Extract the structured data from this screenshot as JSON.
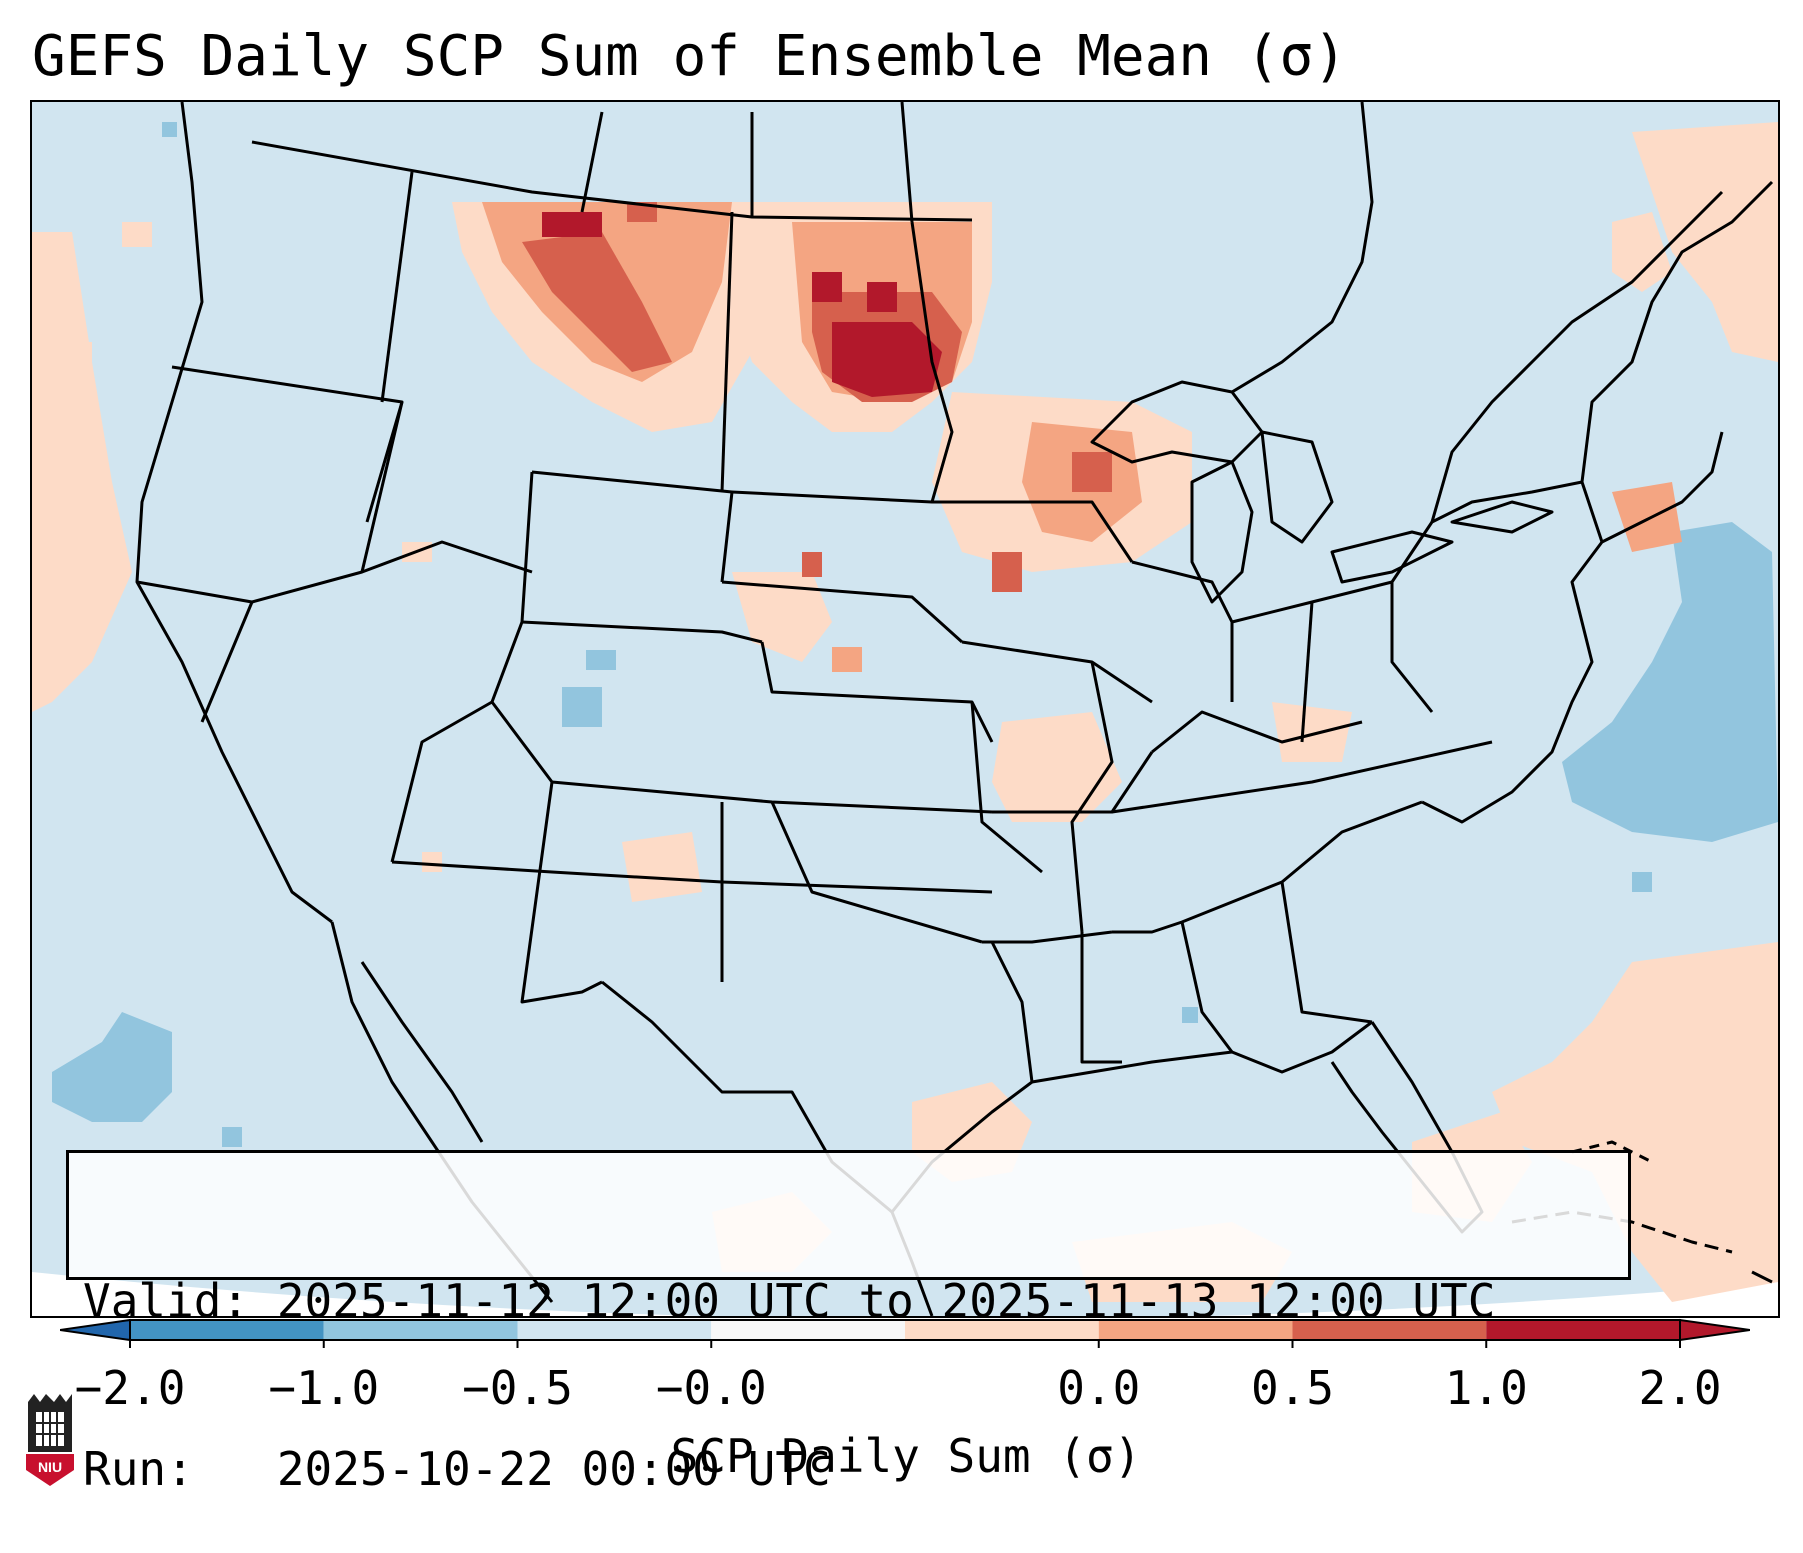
{
  "title": "GEFS Daily SCP Sum of Ensemble Mean (σ)",
  "info": {
    "valid_line": "Valid: 2025-11-12 12:00 UTC to 2025-11-13 12:00 UTC",
    "run_line": "Run:   2025-10-22 00:00 UTC"
  },
  "colorbar": {
    "label": "SCP Daily Sum (σ)",
    "ticks": [
      "−2.0",
      "−1.0",
      "−0.5",
      "−0.0",
      "0.0",
      "0.5",
      "1.0",
      "2.0"
    ],
    "colors": [
      "#4393c3",
      "#92c5de",
      "#d1e5f0",
      "#f7f7f7",
      "#fddbc7",
      "#f4a582",
      "#d6604d",
      "#b2182b"
    ],
    "under_color": "#2166ac",
    "over_color": "#b2182b"
  },
  "logo": {
    "text": "NIU",
    "color": "#c8102e"
  },
  "map": {
    "background_color": "#d1e5f0",
    "outside_projection_color": "#ffffff"
  }
}
